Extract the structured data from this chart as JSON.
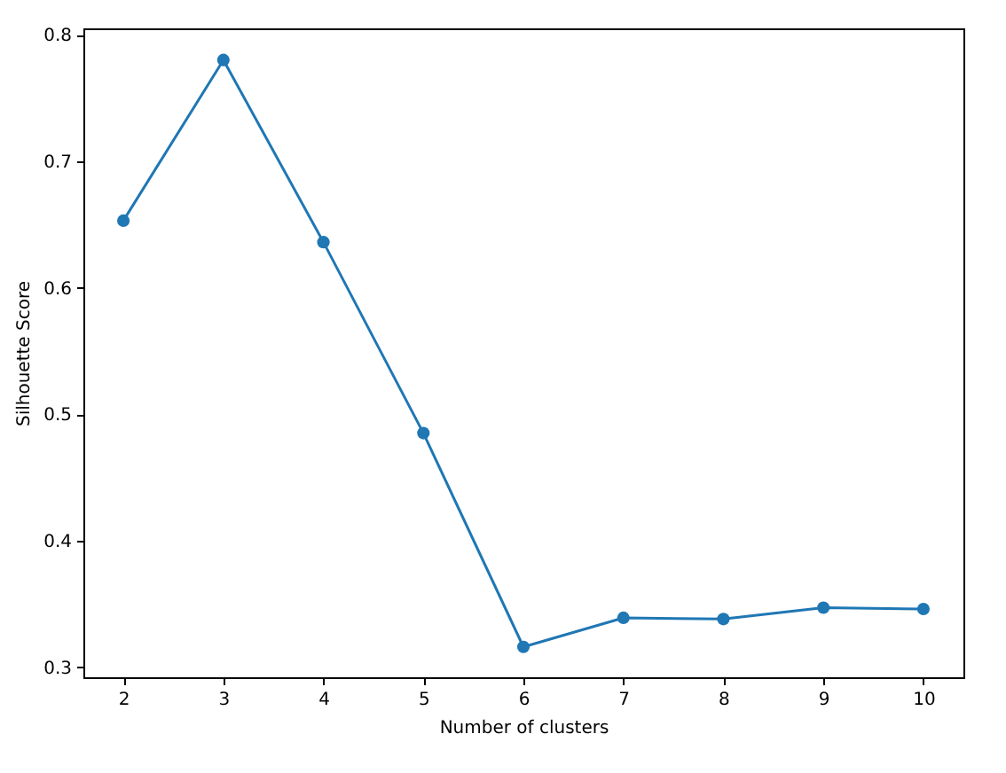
{
  "chart_data": {
    "type": "line",
    "xlabel": "Number of clusters",
    "ylabel": "Silhouette Score",
    "x": [
      2,
      3,
      4,
      5,
      6,
      7,
      8,
      9,
      10
    ],
    "series": [
      {
        "color": "#1f77b4",
        "values": [
          0.653,
          0.78,
          0.636,
          0.485,
          0.316,
          0.339,
          0.338,
          0.347,
          0.346
        ]
      }
    ],
    "xlim": [
      1.6,
      10.4
    ],
    "xticks": [
      2,
      3,
      4,
      5,
      6,
      7,
      8,
      9,
      10
    ],
    "ylim": [
      0.292,
      0.805
    ],
    "yticks": [
      0.3,
      0.4,
      0.5,
      0.6,
      0.7,
      0.8
    ],
    "marker": "circle",
    "line_style": "solid"
  }
}
